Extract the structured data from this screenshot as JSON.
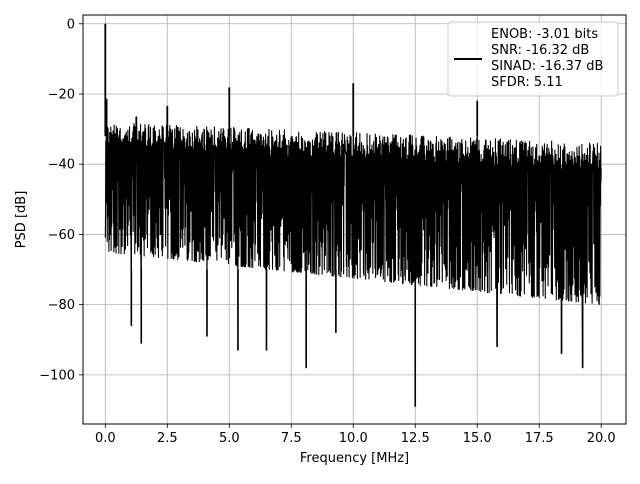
{
  "chart_data": {
    "type": "line",
    "title": "",
    "xlabel": "Frequency [MHz]",
    "ylabel": "PSD [dB]",
    "xlim": [
      -0.9,
      21.0
    ],
    "ylim": [
      -114,
      2.5
    ],
    "xticks": [
      0.0,
      2.5,
      5.0,
      7.5,
      10.0,
      12.5,
      15.0,
      17.5,
      20.0
    ],
    "xtick_labels": [
      "0.0",
      "2.5",
      "5.0",
      "7.5",
      "10.0",
      "12.5",
      "15.0",
      "17.5",
      "20.0"
    ],
    "yticks": [
      0,
      -20,
      -40,
      -60,
      -80,
      -100
    ],
    "ytick_labels": [
      "0",
      "−20",
      "−40",
      "−60",
      "−80",
      "−100"
    ],
    "grid": true,
    "legend_position": "top-right",
    "legend_lines": [
      "ENOB: -3.01 bits",
      "SNR: -16.32 dB",
      "SINAD: -16.37 dB",
      "SFDR: 5.11"
    ],
    "line_color": "#000000",
    "noise_floor": {
      "x_range": [
        0.0,
        20.0
      ],
      "upper_envelope_db": [
        -28,
        -34
      ],
      "lower_envelope_db": [
        -65,
        -80
      ]
    },
    "spikes": [
      {
        "x": 0.0,
        "y": 0
      },
      {
        "x": 0.05,
        "y": -21.5
      },
      {
        "x": 1.25,
        "y": -26.5
      },
      {
        "x": 2.5,
        "y": -23.5
      },
      {
        "x": 5.0,
        "y": -18.2
      },
      {
        "x": 10.0,
        "y": -17.0
      },
      {
        "x": 15.0,
        "y": -22.0
      }
    ],
    "dips": [
      {
        "x": 1.05,
        "y": -86
      },
      {
        "x": 1.45,
        "y": -91
      },
      {
        "x": 4.1,
        "y": -89
      },
      {
        "x": 5.35,
        "y": -93
      },
      {
        "x": 6.5,
        "y": -93
      },
      {
        "x": 8.1,
        "y": -98
      },
      {
        "x": 9.3,
        "y": -88
      },
      {
        "x": 12.5,
        "y": -109
      },
      {
        "x": 15.8,
        "y": -92
      },
      {
        "x": 18.4,
        "y": -94
      },
      {
        "x": 19.25,
        "y": -98
      }
    ]
  }
}
